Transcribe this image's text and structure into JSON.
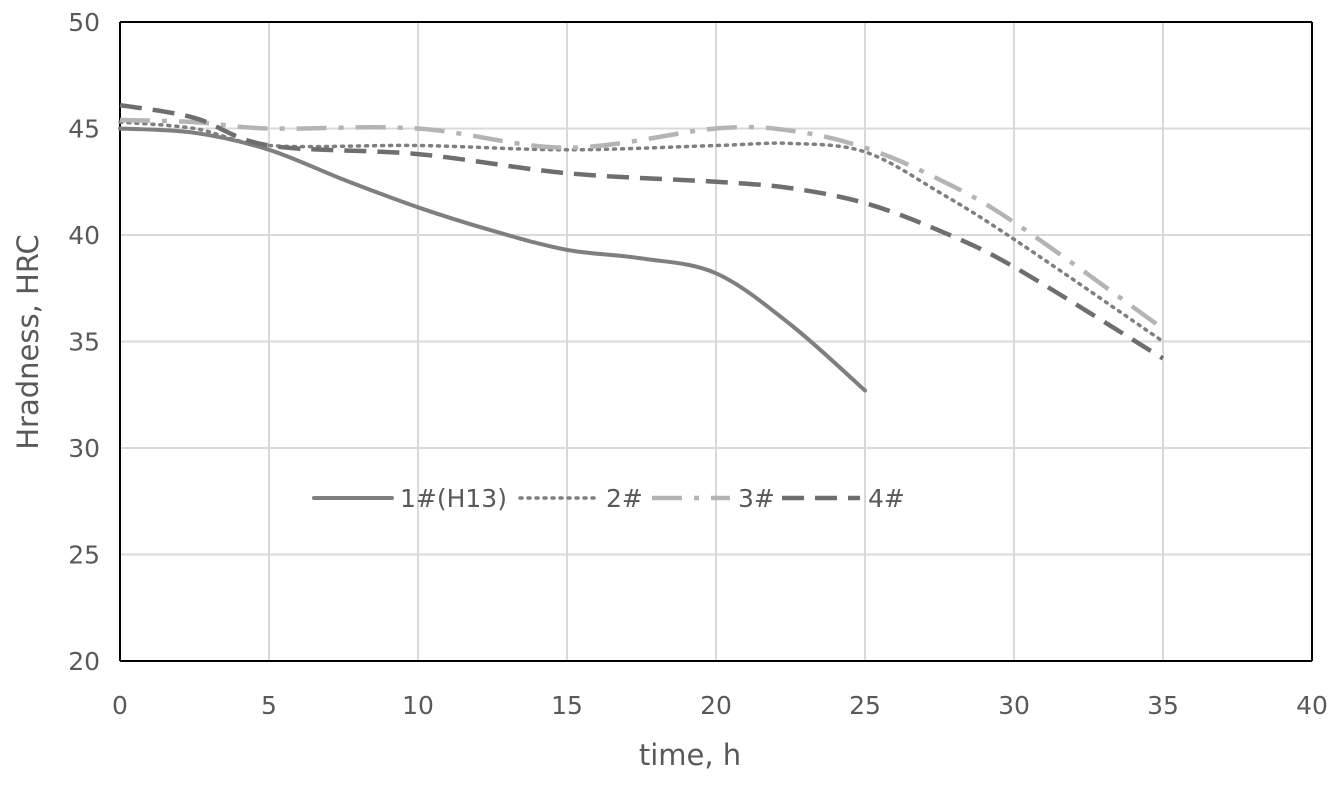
{
  "chart_data": {
    "type": "line",
    "title": "",
    "xlabel": "time, h",
    "ylabel": "Hradness, HRC",
    "xlim": [
      0,
      40
    ],
    "ylim": [
      20,
      50
    ],
    "xticks": [
      0,
      5,
      10,
      15,
      20,
      25,
      30,
      35,
      40
    ],
    "yticks": [
      20,
      25,
      30,
      35,
      40,
      45,
      50
    ],
    "grid": true,
    "legend_position": "inside-center-left",
    "series": [
      {
        "name": "1#(H13)",
        "color": "#7f7f7f",
        "dash": "solid",
        "x": [
          0,
          2.5,
          5,
          7.5,
          10,
          12.5,
          15,
          17.5,
          20,
          22.5,
          25
        ],
        "y": [
          45.0,
          44.8,
          44.0,
          42.6,
          41.3,
          40.2,
          39.3,
          38.9,
          38.2,
          35.8,
          32.7
        ]
      },
      {
        "name": "2#",
        "color": "#7f7f7f",
        "dash": "dot",
        "x": [
          0,
          2.5,
          5,
          10,
          15,
          20,
          22.5,
          25,
          27.5,
          30,
          35
        ],
        "y": [
          45.3,
          45.0,
          44.2,
          44.2,
          44.0,
          44.2,
          44.3,
          43.9,
          42.0,
          39.8,
          35.0
        ]
      },
      {
        "name": "3#",
        "color": "#b4b4b4",
        "dash": "dashdot",
        "x": [
          0,
          2.5,
          5,
          10,
          15,
          20,
          22.5,
          25,
          27.5,
          30,
          35
        ],
        "y": [
          45.4,
          45.3,
          45.0,
          45.0,
          44.1,
          45.0,
          44.9,
          44.1,
          42.6,
          40.6,
          35.6
        ]
      },
      {
        "name": "4#",
        "color": "#6e6e6e",
        "dash": "dash",
        "x": [
          0,
          2.5,
          5,
          10,
          15,
          20,
          22.5,
          25,
          27.5,
          30,
          35
        ],
        "y": [
          46.1,
          45.5,
          44.2,
          43.8,
          42.9,
          42.5,
          42.2,
          41.5,
          40.2,
          38.5,
          34.2
        ]
      }
    ]
  }
}
